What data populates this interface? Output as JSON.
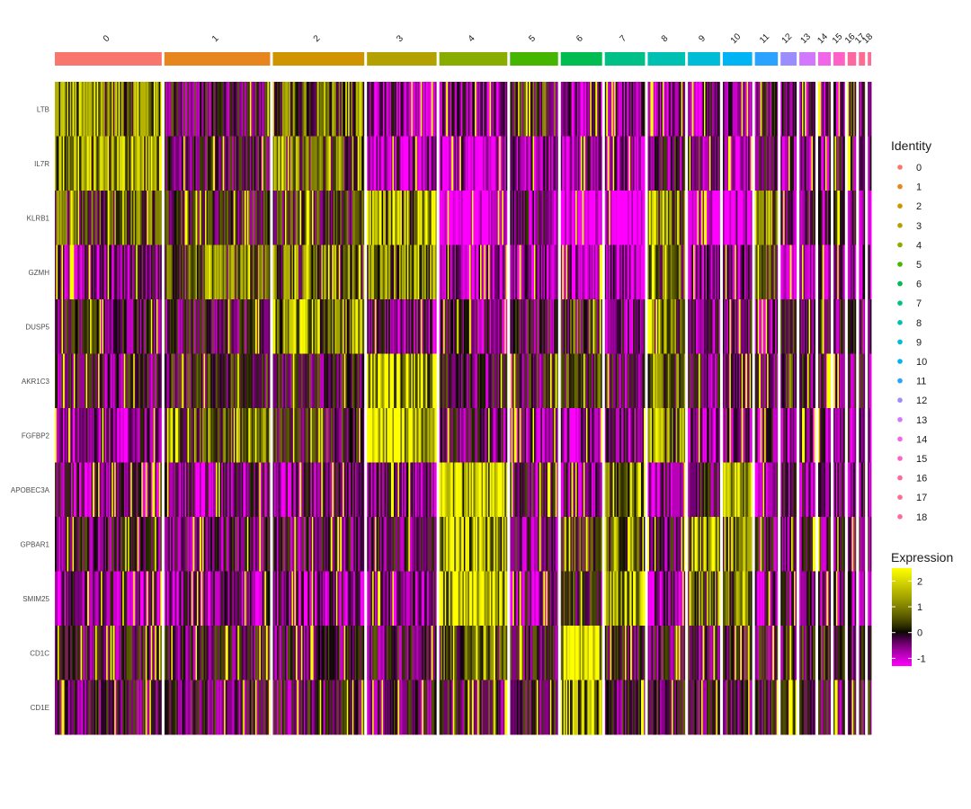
{
  "chart_data": {
    "type": "heatmap",
    "title": "",
    "genes": [
      "LTB",
      "IL7R",
      "KLRB1",
      "GZMH",
      "DUSP5",
      "AKR1C3",
      "FGFBP2",
      "APOBEC3A",
      "GPBAR1",
      "SMIM25",
      "CD1C",
      "CD1E"
    ],
    "clusters": [
      {
        "label": "0",
        "cells": 465,
        "color": "#F8766D"
      },
      {
        "label": "1",
        "cells": 460,
        "color": "#E7851E"
      },
      {
        "label": "2",
        "cells": 398,
        "color": "#D09400"
      },
      {
        "label": "3",
        "cells": 303,
        "color": "#B2A100"
      },
      {
        "label": "4",
        "cells": 296,
        "color": "#89AC00"
      },
      {
        "label": "5",
        "cells": 209,
        "color": "#45B500"
      },
      {
        "label": "6",
        "cells": 180,
        "color": "#00BC51"
      },
      {
        "label": "7",
        "cells": 175,
        "color": "#00C087"
      },
      {
        "label": "8",
        "cells": 163,
        "color": "#00C0B2"
      },
      {
        "label": "9",
        "cells": 140,
        "color": "#00BCD6"
      },
      {
        "label": "10",
        "cells": 128,
        "color": "#00B3F2"
      },
      {
        "label": "11",
        "cells": 100,
        "color": "#29A3FF"
      },
      {
        "label": "12",
        "cells": 70,
        "color": "#9C8DFF"
      },
      {
        "label": "13",
        "cells": 70,
        "color": "#D277FF"
      },
      {
        "label": "14",
        "cells": 55,
        "color": "#F166E8"
      },
      {
        "label": "15",
        "cells": 50,
        "color": "#FF61C7"
      },
      {
        "label": "16",
        "cells": 37,
        "color": "#FF689E"
      },
      {
        "label": "17",
        "cells": 27,
        "color": "#FF6C91"
      },
      {
        "label": "18",
        "cells": 15,
        "color": "#FF6A98"
      }
    ],
    "mean_expression": [
      [
        1.1,
        -0.2,
        0.8,
        -0.7,
        -0.6,
        0.2,
        -0.6,
        -0.7,
        -0.5,
        -0.6,
        -0.6,
        -0.3,
        -0.5,
        -0.5,
        -0.5,
        -0.6,
        0.9,
        -0.4,
        -0.5
      ],
      [
        1.3,
        -0.1,
        0.7,
        -0.7,
        -0.9,
        -0.5,
        -0.6,
        -0.9,
        -0.2,
        -0.5,
        -0.8,
        -0.4,
        -0.5,
        -0.6,
        -0.5,
        -0.4,
        -0.2,
        -0.4,
        -0.5
      ],
      [
        0.5,
        0.0,
        0.2,
        1.5,
        -1.4,
        -0.5,
        -1.5,
        -1.4,
        1.2,
        -1.1,
        -1.0,
        1.1,
        -0.6,
        -0.4,
        -0.6,
        -0.4,
        -0.4,
        -0.5,
        -0.5
      ],
      [
        -0.6,
        0.6,
        0.7,
        0.8,
        -0.8,
        -0.8,
        -1.0,
        -0.8,
        0.4,
        -0.8,
        -0.8,
        0.3,
        -0.8,
        -0.8,
        -0.8,
        -0.8,
        -0.8,
        -0.8,
        -0.8
      ],
      [
        -0.1,
        -0.2,
        1.2,
        -0.6,
        -0.5,
        -0.2,
        0.3,
        -0.6,
        0.6,
        -0.5,
        -0.3,
        -0.6,
        0.1,
        -0.4,
        -0.2,
        -0.2,
        -0.2,
        -0.3,
        -0.4
      ],
      [
        -0.3,
        0.0,
        -0.1,
        1.9,
        -0.2,
        -0.2,
        0.2,
        -0.3,
        0.6,
        -0.3,
        -0.3,
        -0.3,
        0.3,
        -0.3,
        -0.3,
        -0.2,
        -0.3,
        -0.3,
        -0.3
      ],
      [
        -0.6,
        0.6,
        0.0,
        2.3,
        -0.4,
        -0.5,
        -0.6,
        -0.6,
        1.0,
        -0.5,
        -0.5,
        -0.6,
        -0.6,
        -0.6,
        -0.6,
        -0.6,
        -0.6,
        -0.6,
        -0.6
      ],
      [
        -0.5,
        -0.5,
        -0.5,
        -0.5,
        1.9,
        -0.4,
        -0.4,
        1.3,
        -0.5,
        -0.1,
        1.5,
        -0.5,
        -0.5,
        -0.5,
        -0.5,
        -0.5,
        -0.5,
        -0.5,
        -0.5
      ],
      [
        -0.3,
        -0.3,
        -0.3,
        -0.3,
        1.5,
        -0.3,
        0.2,
        1.1,
        -0.3,
        1.2,
        0.8,
        -0.3,
        -0.3,
        -0.3,
        -0.3,
        -0.3,
        -0.3,
        -0.3,
        -0.3
      ],
      [
        -0.6,
        -0.6,
        -0.6,
        -0.6,
        2.0,
        -0.5,
        0.1,
        1.4,
        -0.6,
        0.7,
        0.9,
        -0.6,
        -0.5,
        -0.5,
        -0.5,
        -0.5,
        -0.5,
        -0.5,
        -0.5
      ],
      [
        -0.2,
        -0.2,
        -0.2,
        -0.2,
        0.3,
        -0.2,
        2.3,
        -0.2,
        -0.2,
        -0.2,
        0.1,
        -0.2,
        0.0,
        -0.1,
        0.1,
        -0.2,
        -0.2,
        -0.2,
        -0.2
      ],
      [
        -0.2,
        -0.2,
        -0.2,
        -0.2,
        -0.1,
        -0.2,
        1.6,
        -0.2,
        -0.2,
        -0.2,
        -0.2,
        -0.2,
        -0.2,
        -0.2,
        -0.2,
        -0.2,
        -0.2,
        -0.2,
        -0.2
      ]
    ],
    "color_scale": {
      "low": "#FF00FF",
      "mid": "#000000",
      "high": "#FFFF00",
      "min": -1.3,
      "max": 2.5
    },
    "legend": {
      "identity_title": "Identity",
      "expression_title": "Expression",
      "expression_ticks": [
        2,
        1,
        0,
        -1
      ],
      "placement": "right"
    }
  }
}
